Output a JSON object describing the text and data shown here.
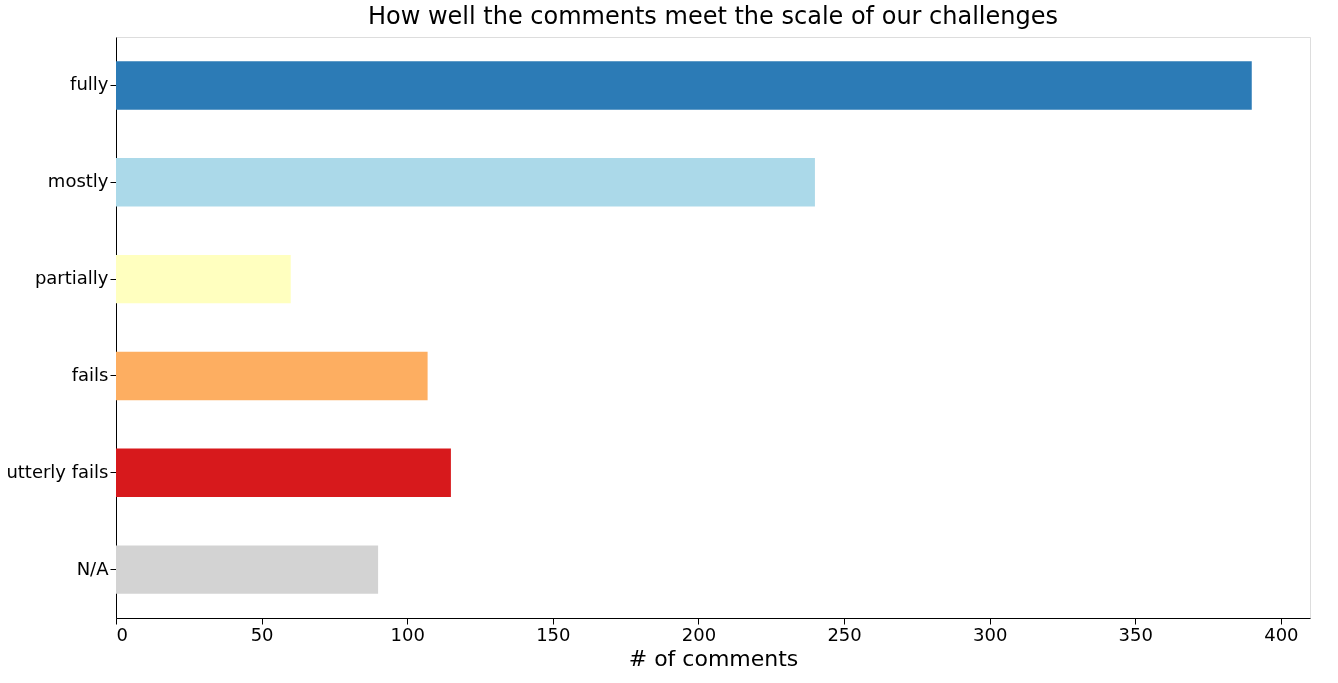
{
  "chart_data": {
    "type": "bar",
    "orientation": "horizontal",
    "title": "How well the comments meet the scale of our challenges",
    "xlabel": "# of comments",
    "categories": [
      "fully",
      "mostly",
      "partially",
      "fails",
      "utterly fails",
      "N/A"
    ],
    "values": [
      390,
      240,
      60,
      107,
      115,
      90
    ],
    "colors": [
      "#2c7bb6",
      "#abd9e9",
      "#ffffbf",
      "#fdae61",
      "#d7191c",
      "#d3d3d3"
    ],
    "xlim": [
      0,
      410
    ],
    "xticks": [
      0,
      50,
      100,
      150,
      200,
      250,
      300,
      350,
      400
    ],
    "grid": false
  }
}
